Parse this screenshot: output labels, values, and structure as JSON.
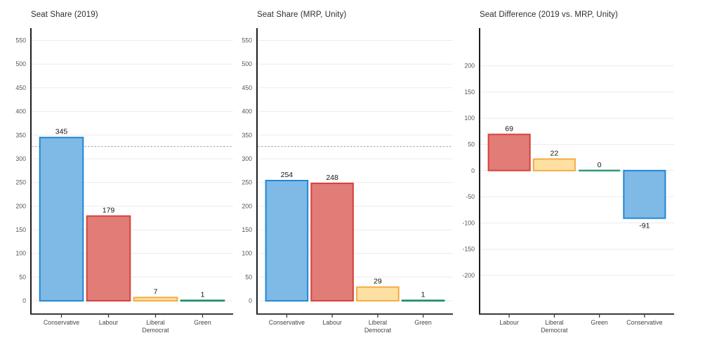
{
  "figure": {
    "background": "#ffffff",
    "description": "Three-panel UK election seat bar charts"
  },
  "style": {
    "grid_color": "#ececec",
    "x_axis_color": "#3a3a3a",
    "y_axis_color": "#1d1d1d",
    "dotted_line_color": "#ababab",
    "value_label_color": "#141414",
    "tick_label_color": "#555555",
    "party_colors": {
      "conservative": {
        "fill": "#7FB9E6",
        "stroke": "#1E87D5"
      },
      "labour": {
        "fill": "#E17C77",
        "stroke": "#D6423C"
      },
      "liberal_democrat": {
        "fill": "#FFE0A3",
        "stroke": "#F2AC41"
      },
      "green": {
        "fill": "#2E9B74",
        "stroke": "#1C8A66"
      }
    }
  },
  "chart_data": [
    {
      "type": "bar",
      "title": "Seat Share (2019)",
      "categories": [
        "Conservative",
        "Labour",
        "Liberal Democrat",
        "Green"
      ],
      "category_labels": [
        [
          "Conservative"
        ],
        [
          "Labour"
        ],
        [
          "Liberal",
          "Democrat"
        ],
        [
          "Green"
        ]
      ],
      "values": [
        345,
        179,
        7,
        1
      ],
      "value_labels": [
        "345",
        "179",
        "7",
        "1"
      ],
      "colors": [
        {
          "fill": "#7FB9E6",
          "stroke": "#1E87D5"
        },
        {
          "fill": "#E17C77",
          "stroke": "#D6423C"
        },
        {
          "fill": "#FFE0A3",
          "stroke": "#F2AC41"
        },
        {
          "fill": "#2E9B74",
          "stroke": "#1C8A66"
        }
      ],
      "yticks": [
        550,
        500,
        450,
        400,
        350,
        300,
        250,
        200,
        150,
        100,
        50,
        0
      ],
      "ylim": [
        -28,
        576
      ],
      "majority_line": 326,
      "grid": true,
      "xlabel": "",
      "ylabel": ""
    },
    {
      "type": "bar",
      "title": "Seat Share (MRP, Unity)",
      "categories": [
        "Conservative",
        "Labour",
        "Liberal Democrat",
        "Green"
      ],
      "category_labels": [
        [
          "Conservative"
        ],
        [
          "Labour"
        ],
        [
          "Liberal",
          "Democrat"
        ],
        [
          "Green"
        ]
      ],
      "values": [
        254,
        248,
        29,
        1
      ],
      "value_labels": [
        "254",
        "248",
        "29",
        "1"
      ],
      "colors": [
        {
          "fill": "#7FB9E6",
          "stroke": "#1E87D5"
        },
        {
          "fill": "#E17C77",
          "stroke": "#D6423C"
        },
        {
          "fill": "#FFE0A3",
          "stroke": "#F2AC41"
        },
        {
          "fill": "#2E9B74",
          "stroke": "#1C8A66"
        }
      ],
      "yticks": [
        550,
        500,
        450,
        400,
        350,
        300,
        250,
        200,
        150,
        100,
        50,
        0
      ],
      "ylim": [
        -28,
        576
      ],
      "majority_line": 326,
      "grid": true,
      "xlabel": "",
      "ylabel": ""
    },
    {
      "type": "bar",
      "title": "Seat Difference (2019 vs. MRP, Unity)",
      "categories": [
        "Labour",
        "Liberal Democrat",
        "Green",
        "Conservative"
      ],
      "category_labels": [
        [
          "Labour"
        ],
        [
          "Liberal",
          "Democrat"
        ],
        [
          "Green"
        ],
        [
          "Conservative"
        ]
      ],
      "values": [
        69,
        22,
        0,
        -91
      ],
      "value_labels": [
        "69",
        "22",
        "0",
        "-91"
      ],
      "colors": [
        {
          "fill": "#E17C77",
          "stroke": "#D6423C"
        },
        {
          "fill": "#FFE0A3",
          "stroke": "#F2AC41"
        },
        {
          "fill": "#2E9B74",
          "stroke": "#1C8A66"
        },
        {
          "fill": "#7FB9E6",
          "stroke": "#1E87D5"
        }
      ],
      "yticks": [
        200,
        150,
        100,
        50,
        0,
        -50,
        -100,
        -150,
        -200
      ],
      "ylim": [
        -274,
        272
      ],
      "majority_line": null,
      "grid": true,
      "xlabel": "",
      "ylabel": ""
    }
  ]
}
